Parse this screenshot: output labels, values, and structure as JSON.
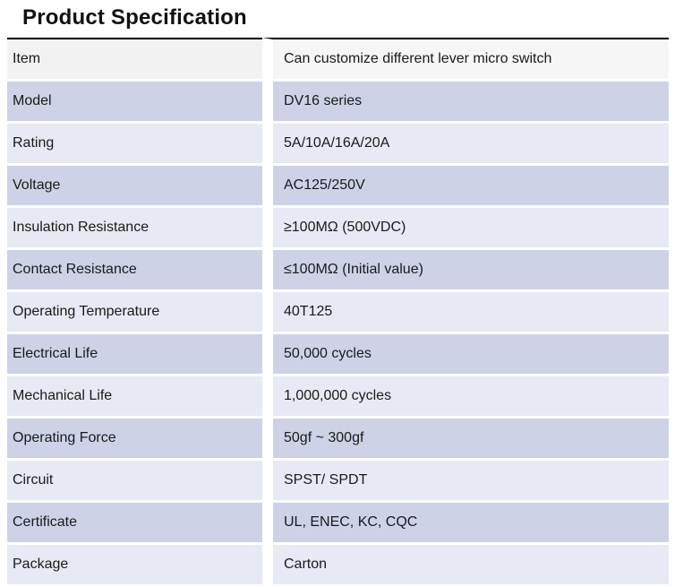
{
  "title": "Product Specification",
  "colors": {
    "text": "#1a1a1a",
    "top_rule": "#000000",
    "header_left_bg": "#f2f2f2",
    "header_right_bg": "#f6f6f7",
    "row_dark_bg": "#cdd2e7",
    "row_light_bg": "#e7e9f4",
    "gap_white": "#ffffff"
  },
  "table": {
    "header": {
      "label": "Item",
      "value": "Can customize different lever micro switch"
    },
    "rows": [
      {
        "label": "Model",
        "value": "DV16 series",
        "shade": "dark"
      },
      {
        "label": "Rating",
        "value": "5A/10A/16A/20A",
        "shade": "light"
      },
      {
        "label": "Voltage",
        "value": "AC125/250V",
        "shade": "dark"
      },
      {
        "label": "Insulation Resistance",
        "value": "≥100MΩ (500VDC)",
        "shade": "light"
      },
      {
        "label": "Contact Resistance",
        "value": "≤100MΩ (Initial value)",
        "shade": "dark"
      },
      {
        "label": "Operating Temperature",
        "value": "40T125",
        "shade": "light"
      },
      {
        "label": "Electrical Life",
        "value": "50,000 cycles",
        "shade": "dark"
      },
      {
        "label": "Mechanical Life",
        "value": "1,000,000 cycles",
        "shade": "light"
      },
      {
        "label": "Operating Force",
        "value": "50gf ~ 300gf",
        "shade": "dark"
      },
      {
        "label": "Circuit",
        "value": "SPST/ SPDT",
        "shade": "light"
      },
      {
        "label": "Certificate",
        "value": "UL, ENEC, KC, CQC",
        "shade": "dark"
      },
      {
        "label": "Package",
        "value": "Carton",
        "shade": "light"
      }
    ]
  }
}
